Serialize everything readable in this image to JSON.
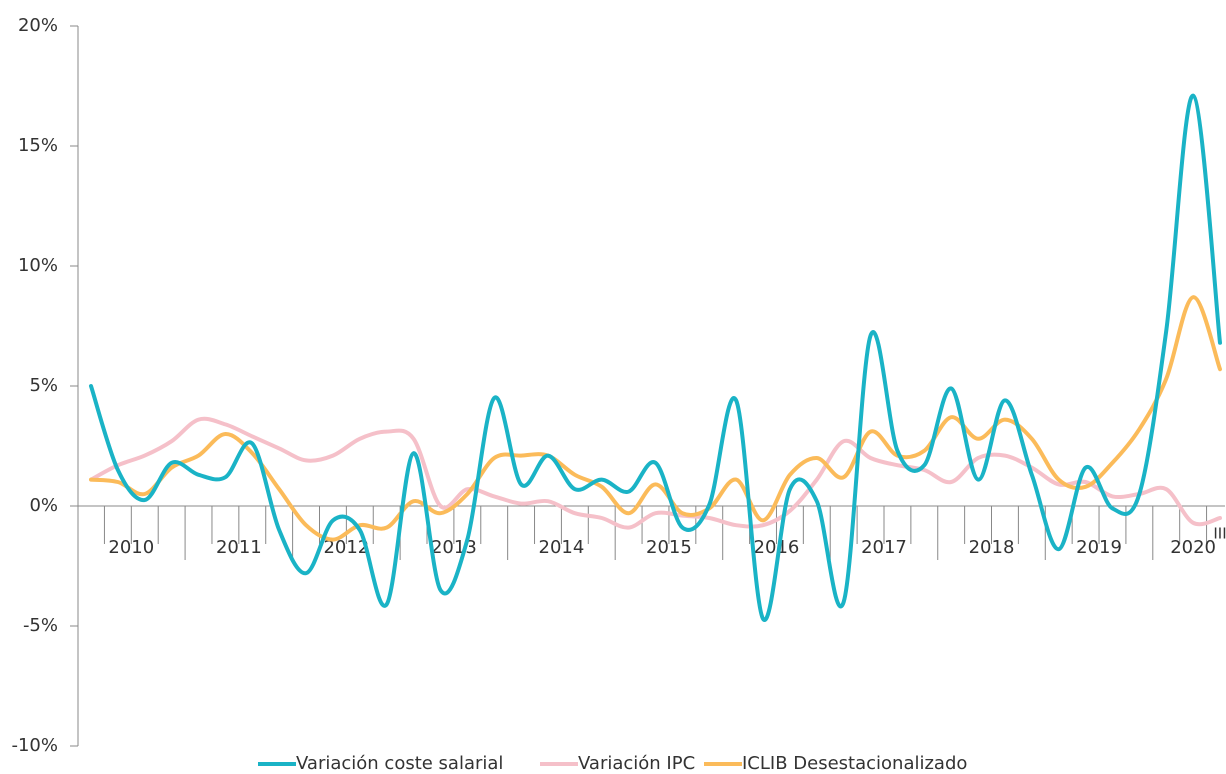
{
  "chart_data": {
    "type": "line",
    "categories": [
      null,
      null,
      null,
      null,
      null,
      null,
      null,
      null,
      null,
      null,
      null,
      null,
      null,
      null,
      null,
      null,
      null,
      null,
      null,
      null,
      null,
      null,
      null,
      null,
      null,
      null,
      null,
      null,
      null,
      null,
      null,
      null,
      null,
      null,
      null,
      null,
      null,
      null,
      null,
      null,
      null,
      null,
      "III"
    ],
    "groups": [
      {
        "label": "2010",
        "size": 4
      },
      {
        "label": "2011",
        "size": 4
      },
      {
        "label": "2012",
        "size": 4
      },
      {
        "label": "2013",
        "size": 4
      },
      {
        "label": "2014",
        "size": 4
      },
      {
        "label": "2015",
        "size": 4
      },
      {
        "label": "2016",
        "size": 4
      },
      {
        "label": "2017",
        "size": 4
      },
      {
        "label": "2018",
        "size": 4
      },
      {
        "label": "2019",
        "size": 4
      },
      {
        "label": "2020",
        "size": 3
      }
    ],
    "series": [
      {
        "name": "Variación coste salarial",
        "color": "#1ab3c6",
        "values": [
          5.0,
          1.5,
          0.25,
          1.8,
          1.3,
          1.2,
          2.6,
          -1.0,
          -2.8,
          -0.6,
          -1.0,
          -4.1,
          2.2,
          -3.5,
          -1.4,
          4.5,
          0.9,
          2.1,
          0.7,
          1.1,
          0.6,
          1.8,
          -0.9,
          0.05,
          4.4,
          -4.7,
          0.7,
          0.2,
          -4.0,
          7.1,
          2.3,
          1.7,
          4.9,
          1.1,
          4.4,
          1.3,
          -1.8,
          1.6,
          -0.1,
          0.5,
          7.3,
          17.1,
          6.8
        ]
      },
      {
        "name": "Variación IPC",
        "color": "#f5c0c9",
        "values": [
          1.1,
          1.7,
          2.1,
          2.7,
          3.6,
          3.4,
          2.9,
          2.4,
          1.9,
          2.1,
          2.8,
          3.1,
          2.8,
          0.0,
          0.7,
          0.4,
          0.1,
          0.2,
          -0.3,
          -0.5,
          -0.9,
          -0.3,
          -0.4,
          -0.5,
          -0.8,
          -0.8,
          -0.2,
          1.1,
          2.7,
          2.0,
          1.7,
          1.5,
          1.0,
          2.0,
          2.1,
          1.6,
          0.9,
          1.0,
          0.4,
          0.5,
          0.7,
          -0.7,
          -0.5
        ]
      },
      {
        "name": "ICLIB Desestacionalizado",
        "color": "#fbbb5a",
        "values": [
          1.1,
          1.0,
          0.5,
          1.6,
          2.1,
          3.0,
          2.2,
          0.7,
          -0.8,
          -1.4,
          -0.8,
          -0.9,
          0.2,
          -0.3,
          0.5,
          2.0,
          2.1,
          2.1,
          1.3,
          0.8,
          -0.3,
          0.9,
          -0.3,
          -0.1,
          1.1,
          -0.6,
          1.3,
          2.0,
          1.2,
          3.1,
          2.1,
          2.3,
          3.7,
          2.8,
          3.6,
          2.8,
          1.1,
          0.8,
          1.8,
          3.2,
          5.3,
          8.7,
          5.7
        ]
      }
    ],
    "ylim": [
      -10,
      20
    ],
    "yticks": [
      {
        "value": -10,
        "label": "-10%"
      },
      {
        "value": -5,
        "label": "-5%"
      },
      {
        "value": 0,
        "label": "0%"
      },
      {
        "value": 5,
        "label": "5%"
      },
      {
        "value": 10,
        "label": "10%"
      },
      {
        "value": 15,
        "label": "15%"
      },
      {
        "value": 20,
        "label": "20%"
      }
    ],
    "grid": false,
    "legend": "bottom"
  }
}
